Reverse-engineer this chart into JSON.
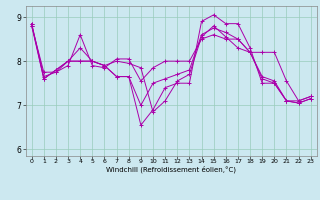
{
  "title": "",
  "xlabel": "Windchill (Refroidissement éolien,°C)",
  "ylabel": "",
  "background_color": "#cce8f0",
  "line_color": "#aa00aa",
  "grid_color": "#99ccbb",
  "xlim": [
    -0.5,
    23.5
  ],
  "ylim": [
    5.85,
    9.25
  ],
  "xticks": [
    0,
    1,
    2,
    3,
    4,
    5,
    6,
    7,
    8,
    9,
    10,
    11,
    12,
    13,
    14,
    15,
    16,
    17,
    18,
    19,
    20,
    21,
    22,
    23
  ],
  "yticks": [
    6,
    7,
    8,
    9
  ],
  "series": [
    {
      "x": [
        0,
        1,
        2,
        3,
        4,
        5,
        6,
        7,
        8,
        9,
        10,
        11,
        12,
        13,
        14,
        15,
        16,
        17,
        18,
        19,
        20,
        21,
        22,
        23
      ],
      "y": [
        8.8,
        7.6,
        7.8,
        8.0,
        8.3,
        8.0,
        7.9,
        8.0,
        7.95,
        7.85,
        6.85,
        7.1,
        7.55,
        7.7,
        8.55,
        8.8,
        8.55,
        8.3,
        8.2,
        7.65,
        7.55,
        7.1,
        7.05,
        7.15
      ]
    },
    {
      "x": [
        0,
        1,
        2,
        3,
        4,
        5,
        6,
        7,
        8,
        9,
        10,
        11,
        12,
        13,
        14,
        15,
        16,
        17,
        18,
        19,
        20,
        21,
        22,
        23
      ],
      "y": [
        8.8,
        7.75,
        7.75,
        7.9,
        8.6,
        7.9,
        7.85,
        8.05,
        8.05,
        7.55,
        7.85,
        8.0,
        8.0,
        8.0,
        8.5,
        8.6,
        8.5,
        8.5,
        8.2,
        8.2,
        8.2,
        7.55,
        7.1,
        7.2
      ]
    },
    {
      "x": [
        0,
        1,
        2,
        3,
        4,
        5,
        6,
        7,
        8,
        9,
        10,
        11,
        12,
        13,
        14,
        15,
        16,
        17,
        18,
        19,
        20,
        21,
        22,
        23
      ],
      "y": [
        8.85,
        7.6,
        7.8,
        8.0,
        8.0,
        8.0,
        7.9,
        7.65,
        7.65,
        6.55,
        6.9,
        7.4,
        7.5,
        7.5,
        8.9,
        9.05,
        8.85,
        8.85,
        8.3,
        7.5,
        7.5,
        7.1,
        7.05,
        7.15
      ]
    },
    {
      "x": [
        0,
        1,
        2,
        3,
        4,
        5,
        6,
        7,
        8,
        9,
        10,
        11,
        12,
        13,
        14,
        15,
        16,
        17,
        18,
        19,
        20,
        21,
        22,
        23
      ],
      "y": [
        8.85,
        7.65,
        7.75,
        8.0,
        8.0,
        8.0,
        7.9,
        7.65,
        7.65,
        7.0,
        7.5,
        7.6,
        7.7,
        7.8,
        8.6,
        8.75,
        8.65,
        8.5,
        8.2,
        7.6,
        7.5,
        7.1,
        7.1,
        7.2
      ]
    }
  ]
}
